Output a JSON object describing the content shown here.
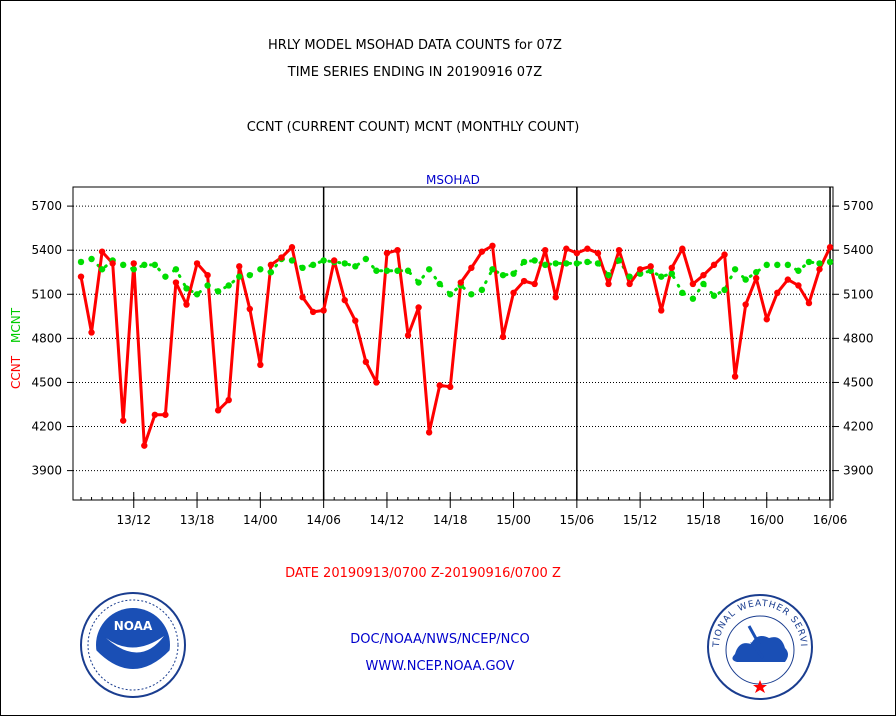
{
  "header": {
    "title_line1": "HRLY MODEL MSOHAD DATA COUNTS for 07Z",
    "title_line2": "TIME SERIES ENDING IN 20190916 07Z",
    "subtitle": "CCNT (CURRENT COUNT) MCNT (MONTHLY COUNT)"
  },
  "footer": {
    "date_range": "DATE 20190913/0700 Z-20190916/0700 Z",
    "credit1": "DOC/NOAA/NWS/NCEP/NCO",
    "credit2": "WWW.NCEP.NOAA.GOV"
  },
  "logos": {
    "left": "NOAA",
    "right": "NATIONAL WEATHER SERVICE"
  },
  "chart_data": {
    "type": "line",
    "title": "MSOHAD",
    "ylabel_ccnt": "CCNT",
    "ylabel_mcnt": "MCNT",
    "yticks": [
      3900,
      4200,
      4500,
      4800,
      5100,
      5400,
      5700
    ],
    "ylim": [
      3700,
      5830
    ],
    "x_tick_labels": [
      "13/12",
      "13/18",
      "14/00",
      "14/06",
      "14/12",
      "14/18",
      "15/00",
      "15/06",
      "15/12",
      "15/18",
      "16/00",
      "16/06"
    ],
    "x_tick_hours": [
      5,
      11,
      17,
      23,
      29,
      35,
      41,
      47,
      53,
      59,
      65,
      71
    ],
    "x_range_hours": [
      0,
      72
    ],
    "day_separators_hours": [
      23,
      47,
      71
    ],
    "grid": true,
    "colors": {
      "ccnt": "#ff0000",
      "mcnt": "#00dd00",
      "axes": "#000000",
      "label": "#0000cc"
    },
    "series": [
      {
        "name": "CCNT",
        "values": [
          5220,
          4840,
          5390,
          5310,
          4240,
          5310,
          4070,
          4280,
          4280,
          5180,
          5030,
          5310,
          5230,
          4310,
          4380,
          5290,
          5000,
          4620,
          5300,
          5350,
          5420,
          5080,
          4980,
          4990,
          5330,
          5060,
          4920,
          4640,
          4500,
          5380,
          5400,
          4820,
          5010,
          4160,
          4480,
          4470,
          5180,
          5280,
          5390,
          5430,
          4810,
          5110,
          5190,
          5170,
          5400,
          5080,
          5410,
          5380,
          5410,
          5380,
          5170,
          5400,
          5170,
          5270,
          5290,
          4990,
          5280,
          5410,
          5170,
          5230,
          5300,
          5370,
          4540,
          5030,
          5210,
          4930,
          5110,
          5200,
          5160,
          5040,
          5270,
          5420
        ]
      },
      {
        "name": "MCNT",
        "values": [
          5320,
          5340,
          5270,
          5330,
          5300,
          5270,
          5300,
          5300,
          5220,
          5270,
          5140,
          5100,
          5160,
          5120,
          5160,
          5220,
          5230,
          5270,
          5250,
          5340,
          5330,
          5280,
          5300,
          5330,
          5320,
          5310,
          5290,
          5340,
          5260,
          5260,
          5260,
          5260,
          5180,
          5270,
          5170,
          5100,
          5160,
          5100,
          5130,
          5270,
          5230,
          5240,
          5320,
          5330,
          5300,
          5310,
          5310,
          5310,
          5320,
          5310,
          5230,
          5330,
          5220,
          5240,
          5260,
          5220,
          5240,
          5110,
          5070,
          5170,
          5090,
          5130,
          5270,
          5200,
          5250,
          5300,
          5300,
          5300,
          5260,
          5320,
          5310,
          5320
        ]
      }
    ]
  }
}
